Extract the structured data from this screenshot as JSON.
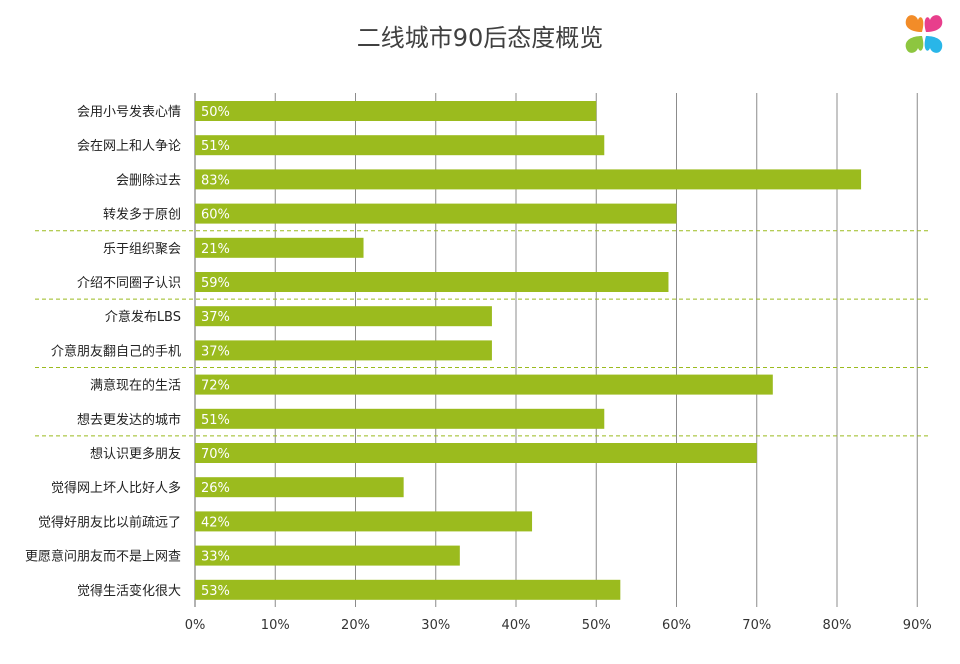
{
  "chart_data": {
    "type": "bar",
    "orientation": "horizontal",
    "title": "二线城市90后态度概览",
    "categories": [
      "会用小号发表心情",
      "会在网上和人争论",
      "会删除过去",
      "转发多于原创",
      "乐于组织聚会",
      "介绍不同圈子认识",
      "介意发布LBS",
      "介意朋友翻自己的手机",
      "满意现在的生活",
      "想去更发达的城市",
      "想认识更多朋友",
      "觉得网上坏人比好人多",
      "觉得好朋友比以前疏远了",
      "更愿意问朋友而不是上网查",
      "觉得生活变化很大"
    ],
    "values": [
      50,
      51,
      83,
      60,
      21,
      59,
      37,
      37,
      72,
      51,
      70,
      26,
      42,
      33,
      53
    ],
    "data_labels": [
      "50%",
      "51%",
      "83%",
      "60%",
      "21%",
      "59%",
      "37%",
      "37%",
      "72%",
      "51%",
      "70%",
      "26%",
      "42%",
      "33%",
      "53%"
    ],
    "group_separators_after": [
      3,
      5,
      7,
      9
    ],
    "x_ticks": [
      "0%",
      "10%",
      "20%",
      "30%",
      "40%",
      "50%",
      "60%",
      "70%",
      "80%",
      "90%"
    ],
    "xlim": [
      0,
      90
    ],
    "grid": true,
    "bar_color": "#9BBB1E",
    "label_color": "#ffffff",
    "separator_color": "#9BBB1E",
    "grid_color": "#8c8c8c"
  },
  "logo": {
    "icon": "four-petal-flower-logo",
    "colors": [
      "#F28C28",
      "#E83E8C",
      "#8DC63F",
      "#29B6E8"
    ]
  }
}
